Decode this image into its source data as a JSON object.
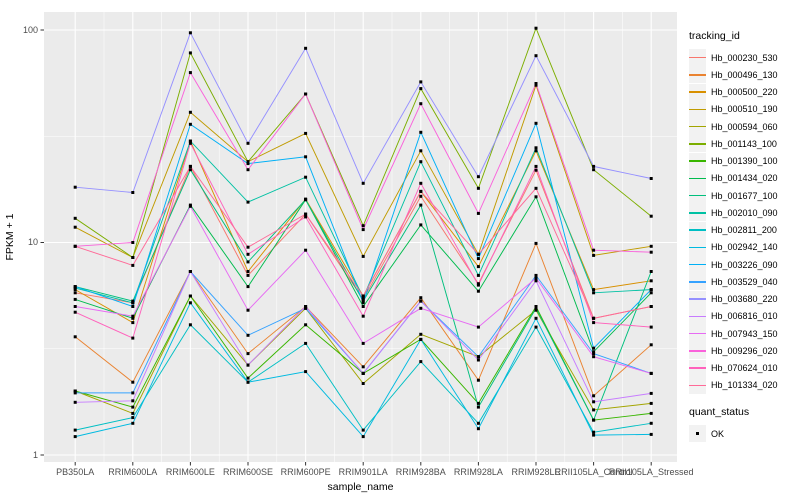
{
  "chart_data": {
    "type": "line",
    "xlabel": "sample_name",
    "ylabel": "FPKM + 1",
    "y_scale": "log10",
    "y_ticks": [
      1,
      10,
      100
    ],
    "y_minor": [
      3.1623,
      31.623
    ],
    "ylim": [
      0.95,
      120
    ],
    "grid": "on",
    "legend_position": "right",
    "panel_bg": "#EBEBEB",
    "grid_color": "#FFFFFF",
    "axis_text_color": "#4D4D4D",
    "tick_color": "#333333",
    "point_color": "#000000",
    "point_shape": "square",
    "categories": [
      "PB350LA",
      "RRIM600LA",
      "RRIM600LE",
      "RRIM600SE",
      "RRIM600PE",
      "RRIM901LA",
      "RRIM928BA",
      "RRIM928LA",
      "RRIM928LE",
      "RRII105LA_Control",
      "RRII105LA_Stressed"
    ],
    "series": [
      {
        "name": "Hb_000230_530",
        "color": "#F8766D",
        "values": [
          5.8,
          5.2,
          22.8,
          7.0,
          13.6,
          5.4,
          16.5,
          6.4,
          21.9,
          4.4,
          5.0
        ]
      },
      {
        "name": "Hb_000496_130",
        "color": "#EA8331",
        "values": [
          3.6,
          2.2,
          7.3,
          3.0,
          5.0,
          2.6,
          5.5,
          2.25,
          9.9,
          1.9,
          3.3
        ]
      },
      {
        "name": "Hb_000500_220",
        "color": "#D89000",
        "values": [
          6.0,
          4.2,
          30.0,
          7.3,
          16.0,
          5.6,
          17.4,
          7.7,
          27.0,
          6.0,
          6.6
        ]
      },
      {
        "name": "Hb_000510_190",
        "color": "#C09B00",
        "values": [
          11.8,
          8.5,
          41.0,
          24.0,
          32.6,
          8.6,
          27.0,
          8.8,
          55.0,
          8.7,
          9.6
        ]
      },
      {
        "name": "Hb_000594_060",
        "color": "#A3A500",
        "values": [
          2.0,
          1.57,
          5.6,
          2.65,
          4.9,
          2.17,
          3.7,
          2.9,
          4.8,
          1.63,
          1.75
        ]
      },
      {
        "name": "Hb_001143_100",
        "color": "#7CAE00",
        "values": [
          13.0,
          8.5,
          78.0,
          24.0,
          50.0,
          12.0,
          53.0,
          18.0,
          102.0,
          22.0,
          13.3
        ]
      },
      {
        "name": "Hb_001390_100",
        "color": "#39B600",
        "values": [
          2.0,
          1.68,
          5.6,
          2.3,
          4.1,
          2.42,
          3.5,
          1.75,
          5.0,
          1.46,
          1.57
        ]
      },
      {
        "name": "Hb_001434_020",
        "color": "#00BB4E",
        "values": [
          5.4,
          4.4,
          15.0,
          6.2,
          15.9,
          5.0,
          12.1,
          5.9,
          16.4,
          3.06,
          5.8
        ]
      },
      {
        "name": "Hb_001677_100",
        "color": "#00BF7D",
        "values": [
          6.2,
          5.3,
          22.0,
          8.1,
          15.9,
          5.3,
          15.0,
          1.68,
          4.9,
          1.46,
          7.3
        ]
      },
      {
        "name": "Hb_002010_090",
        "color": "#00C1A3",
        "values": [
          6.1,
          5.2,
          30.0,
          15.5,
          20.3,
          5.5,
          24.0,
          7.0,
          27.9,
          5.8,
          6.0
        ]
      },
      {
        "name": "Hb_002811_200",
        "color": "#00BFC4",
        "values": [
          1.31,
          1.5,
          4.1,
          2.2,
          3.35,
          1.31,
          2.75,
          1.41,
          4.0,
          1.28,
          1.41
        ]
      },
      {
        "name": "Hb_002942_140",
        "color": "#00BAE0",
        "values": [
          1.22,
          1.41,
          5.2,
          2.2,
          2.47,
          1.22,
          3.5,
          1.33,
          4.4,
          1.24,
          1.25
        ]
      },
      {
        "name": "Hb_003226_090",
        "color": "#00B0F6",
        "values": [
          6.2,
          5.0,
          36.0,
          23.5,
          25.3,
          5.2,
          33.0,
          8.4,
          36.4,
          3.18,
          6.0
        ]
      },
      {
        "name": "Hb_003529_040",
        "color": "#35A2FF",
        "values": [
          1.96,
          1.96,
          7.3,
          3.66,
          4.9,
          2.42,
          5.3,
          2.9,
          7.0,
          3.0,
          2.42
        ]
      },
      {
        "name": "Hb_003680_220",
        "color": "#9590FF",
        "values": [
          18.2,
          17.2,
          97.0,
          29.3,
          82.0,
          19.0,
          57.0,
          20.4,
          75.7,
          22.8,
          20.0
        ]
      },
      {
        "name": "Hb_006816_010",
        "color": "#C77CFF",
        "values": [
          1.77,
          1.8,
          7.3,
          2.65,
          5.0,
          2.42,
          5.3,
          2.8,
          6.6,
          1.78,
          1.95
        ]
      },
      {
        "name": "Hb_007943_150",
        "color": "#E76BF3",
        "values": [
          5.0,
          4.5,
          14.8,
          4.8,
          9.2,
          3.35,
          4.9,
          4.0,
          6.8,
          2.9,
          2.42
        ]
      },
      {
        "name": "Hb_009296_020",
        "color": "#FA62DB",
        "values": [
          9.6,
          10.0,
          63.0,
          22.0,
          50.0,
          11.5,
          45.0,
          13.7,
          56.0,
          9.2,
          9.0
        ]
      },
      {
        "name": "Hb_070624_010",
        "color": "#FF62BC",
        "values": [
          4.7,
          3.55,
          29.3,
          8.8,
          13.2,
          4.5,
          19.0,
          6.3,
          22.8,
          4.2,
          4.0
        ]
      },
      {
        "name": "Hb_101334_020",
        "color": "#FF6A98",
        "values": [
          9.6,
          7.8,
          22.8,
          9.5,
          13.6,
          5.6,
          17.4,
          8.8,
          18.0,
          4.4,
          5.0
        ]
      }
    ],
    "legend": {
      "color_title": "tracking_id",
      "shape_title": "quant_status",
      "shape_items": [
        {
          "label": "OK",
          "marker": "black-square"
        }
      ]
    }
  }
}
